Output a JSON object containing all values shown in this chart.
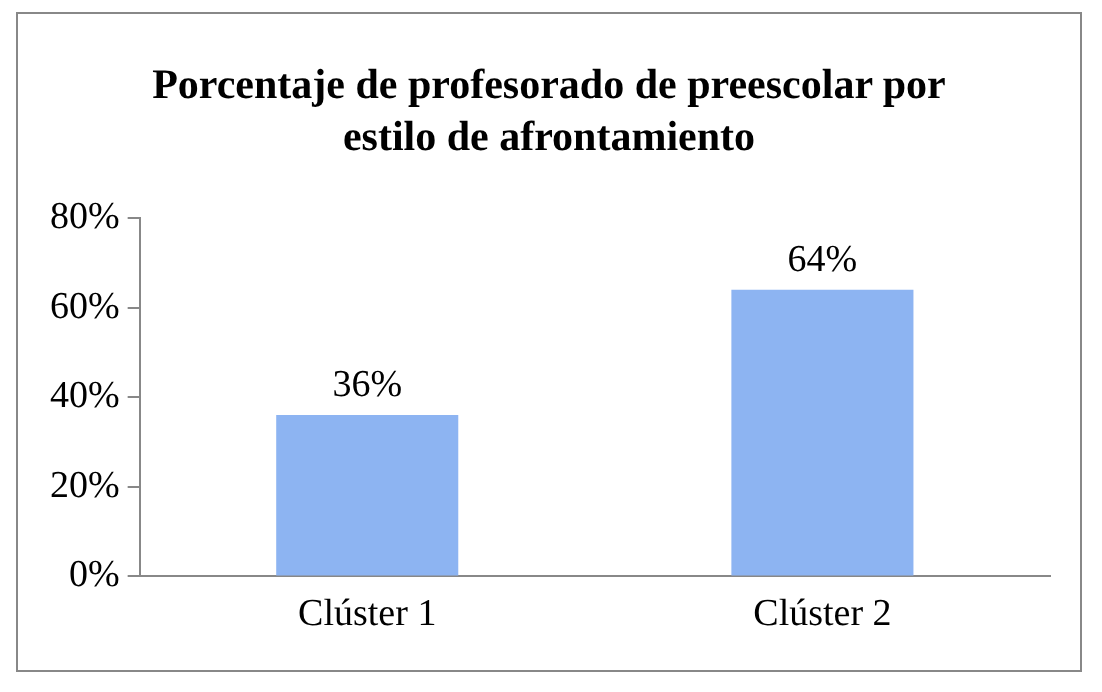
{
  "chart_data": {
    "type": "bar",
    "title": "Porcentaje de profesorado de preescolar por estilo de afrontamiento",
    "categories": [
      "Clúster 1",
      "Clúster 2"
    ],
    "values": [
      36,
      64
    ],
    "value_labels": [
      "36%",
      "64%"
    ],
    "color": "#8db4f2",
    "ylim": [
      0,
      80
    ],
    "yticks": [
      {
        "value": 0,
        "label": "0%"
      },
      {
        "value": 20,
        "label": "20%"
      },
      {
        "value": 40,
        "label": "40%"
      },
      {
        "value": 60,
        "label": "60%"
      },
      {
        "value": 80,
        "label": "80%"
      }
    ],
    "grid": false,
    "legend": false
  }
}
